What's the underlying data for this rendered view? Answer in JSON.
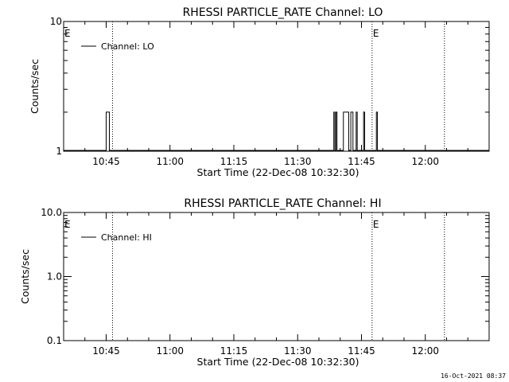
{
  "footer_timestamp": "16-Oct-2021 08:37",
  "chart_data": [
    {
      "type": "line",
      "title": "RHESSI PARTICLE_RATE Channel: LO",
      "xlabel": "Start Time (22-Dec-08 10:32:30)",
      "ylabel": "Counts/sec",
      "y_scale": "log",
      "ylim": [
        1,
        10
      ],
      "y_ticks": [
        {
          "value": 1,
          "label": "1"
        },
        {
          "value": 10,
          "label": "10"
        }
      ],
      "xlim": [
        "10:35",
        "12:15"
      ],
      "x_ticks": [
        "10:45",
        "11:00",
        "11:15",
        "11:30",
        "11:45",
        "12:00"
      ],
      "legend": {
        "position": "top-left",
        "entries": [
          "Channel: LO"
        ]
      },
      "markers": [
        {
          "time": "10:46:30",
          "label": "",
          "style": "dotted"
        },
        {
          "time": "11:47:30",
          "label": "E",
          "style": "dotted"
        },
        {
          "time": "12:04:30",
          "label": "",
          "style": "dotted"
        }
      ],
      "edge_label": "E",
      "series": [
        {
          "name": "Channel: LO",
          "color": "#000000",
          "pulses": [
            {
              "start": "10:45:00",
              "end": "10:45:45",
              "value": 2
            },
            {
              "start": "11:38:30",
              "end": "11:38:45",
              "value": 2
            },
            {
              "start": "11:39:00",
              "end": "11:39:15",
              "value": 2
            },
            {
              "start": "11:40:45",
              "end": "11:42:00",
              "value": 2
            },
            {
              "start": "11:42:30",
              "end": "11:43:00",
              "value": 2
            },
            {
              "start": "11:43:45",
              "end": "11:44:00",
              "value": 2
            },
            {
              "start": "11:45:30",
              "end": "11:45:45",
              "value": 2
            },
            {
              "start": "11:48:30",
              "end": "11:48:45",
              "value": 2
            }
          ]
        }
      ]
    },
    {
      "type": "line",
      "title": "RHESSI PARTICLE_RATE Channel: HI",
      "xlabel": "Start Time (22-Dec-08 10:32:30)",
      "ylabel": "Counts/sec",
      "y_scale": "log",
      "ylim": [
        0.1,
        10
      ],
      "y_ticks": [
        {
          "value": 0.1,
          "label": "0.1"
        },
        {
          "value": 1,
          "label": "1.0"
        },
        {
          "value": 10,
          "label": "10.0"
        }
      ],
      "xlim": [
        "10:35",
        "12:15"
      ],
      "x_ticks": [
        "10:45",
        "11:00",
        "11:15",
        "11:30",
        "11:45",
        "12:00"
      ],
      "legend": {
        "position": "top-left",
        "entries": [
          "Channel: HI"
        ]
      },
      "markers": [
        {
          "time": "10:46:30",
          "label": "",
          "style": "dotted"
        },
        {
          "time": "11:47:30",
          "label": "E",
          "style": "dotted"
        },
        {
          "time": "12:04:30",
          "label": "",
          "style": "dotted"
        }
      ],
      "edge_label": "E",
      "series": [
        {
          "name": "Channel: HI",
          "color": "#000000",
          "pulses": []
        }
      ]
    }
  ]
}
